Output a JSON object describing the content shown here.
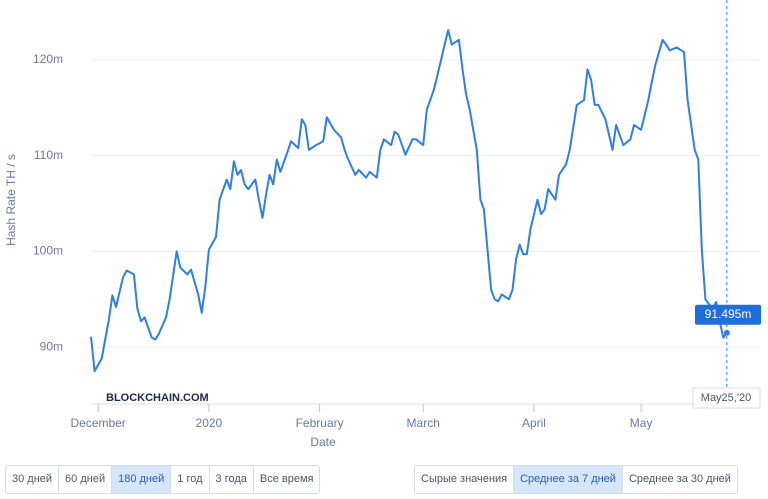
{
  "chart_data": {
    "type": "line",
    "y_label": "Hash Rate TH / s",
    "x_label": "Date",
    "watermark": "BLOCKCHAIN.COM",
    "color": "#2f7ee6",
    "grid": true,
    "xlim": [
      "2019-11-29",
      "2020-06-03"
    ],
    "xticks": [
      {
        "value": "2019-12-01",
        "label": "December"
      },
      {
        "value": "2020-01-01",
        "label": "2020"
      },
      {
        "value": "2020-02-01",
        "label": "February"
      },
      {
        "value": "2020-03-01",
        "label": "March"
      },
      {
        "value": "2020-04-01",
        "label": "April"
      },
      {
        "value": "2020-05-01",
        "label": "May"
      }
    ],
    "ylim": [
      85,
      125
    ],
    "yticks": [
      {
        "value": 90,
        "label": "90m"
      },
      {
        "value": 100,
        "label": "100m"
      },
      {
        "value": 110,
        "label": "110m"
      },
      {
        "value": 120,
        "label": "120m"
      }
    ],
    "x": [
      "2019-11-29",
      "2019-11-30",
      "2019-12-02",
      "2019-12-04",
      "2019-12-05",
      "2019-12-06",
      "2019-12-08",
      "2019-12-09",
      "2019-12-11",
      "2019-12-12",
      "2019-12-13",
      "2019-12-14",
      "2019-12-16",
      "2019-12-17",
      "2019-12-18",
      "2019-12-20",
      "2019-12-21",
      "2019-12-23",
      "2019-12-24",
      "2019-12-26",
      "2019-12-27",
      "2019-12-29",
      "2019-12-30",
      "2019-12-31",
      "2020-01-01",
      "2020-01-03",
      "2020-01-04",
      "2020-01-06",
      "2020-01-07",
      "2020-01-08",
      "2020-01-09",
      "2020-01-10",
      "2020-01-11",
      "2020-01-12",
      "2020-01-14",
      "2020-01-15",
      "2020-01-16",
      "2020-01-17",
      "2020-01-18",
      "2020-01-19",
      "2020-01-20",
      "2020-01-21",
      "2020-01-23",
      "2020-01-24",
      "2020-01-26",
      "2020-01-27",
      "2020-01-28",
      "2020-01-29",
      "2020-01-31",
      "2020-02-02",
      "2020-02-03",
      "2020-02-05",
      "2020-02-07",
      "2020-02-08",
      "2020-02-09",
      "2020-02-11",
      "2020-02-12",
      "2020-02-14",
      "2020-02-15",
      "2020-02-17",
      "2020-02-18",
      "2020-02-19",
      "2020-02-21",
      "2020-02-22",
      "2020-02-23",
      "2020-02-25",
      "2020-02-27",
      "2020-02-28",
      "2020-03-01",
      "2020-03-02",
      "2020-03-04",
      "2020-03-06",
      "2020-03-07",
      "2020-03-08",
      "2020-03-09",
      "2020-03-11",
      "2020-03-12",
      "2020-03-13",
      "2020-03-14",
      "2020-03-16",
      "2020-03-17",
      "2020-03-18",
      "2020-03-19",
      "2020-03-20",
      "2020-03-21",
      "2020-03-22",
      "2020-03-23",
      "2020-03-25",
      "2020-03-26",
      "2020-03-27",
      "2020-03-28",
      "2020-03-29",
      "2020-03-30",
      "2020-03-31",
      "2020-04-02",
      "2020-04-03",
      "2020-04-04",
      "2020-04-05",
      "2020-04-07",
      "2020-04-08",
      "2020-04-10",
      "2020-04-11",
      "2020-04-13",
      "2020-04-15",
      "2020-04-16",
      "2020-04-17",
      "2020-04-18",
      "2020-04-19",
      "2020-04-21",
      "2020-04-23",
      "2020-04-24",
      "2020-04-26",
      "2020-04-28",
      "2020-04-29",
      "2020-05-01",
      "2020-05-03",
      "2020-05-04",
      "2020-05-05",
      "2020-05-07",
      "2020-05-08",
      "2020-05-09",
      "2020-05-11",
      "2020-05-13",
      "2020-05-14",
      "2020-05-16",
      "2020-05-17",
      "2020-05-18",
      "2020-05-19",
      "2020-05-21",
      "2020-05-22",
      "2020-05-23",
      "2020-05-24",
      "2020-05-25"
    ],
    "values": [
      91.1,
      87.5,
      88.8,
      92.9,
      95.4,
      94.2,
      97.3,
      98.0,
      97.6,
      94.0,
      92.7,
      93.1,
      91.0,
      90.8,
      91.4,
      93.1,
      95.0,
      100.0,
      98.3,
      97.6,
      98.1,
      95.5,
      93.6,
      96.3,
      100.2,
      101.5,
      105.4,
      107.5,
      106.5,
      109.4,
      108.0,
      108.5,
      107.0,
      106.5,
      107.5,
      105.4,
      103.5,
      105.9,
      108.0,
      107.0,
      109.6,
      108.3,
      110.4,
      111.5,
      110.8,
      113.8,
      113.2,
      110.6,
      111.1,
      111.5,
      114.0,
      112.7,
      111.9,
      110.6,
      109.6,
      108.0,
      108.5,
      107.7,
      108.3,
      107.7,
      110.6,
      111.7,
      111.1,
      112.5,
      112.2,
      110.1,
      111.7,
      111.7,
      111.1,
      114.8,
      116.9,
      120.0,
      121.6,
      123.1,
      121.6,
      122.1,
      119.0,
      116.4,
      114.8,
      110.6,
      105.4,
      104.4,
      100.2,
      96.0,
      95.0,
      94.8,
      95.5,
      95.0,
      96.0,
      99.2,
      100.7,
      99.7,
      99.7,
      102.3,
      105.4,
      103.9,
      104.4,
      106.5,
      105.4,
      108.0,
      109.1,
      110.6,
      115.3,
      115.8,
      119.0,
      117.9,
      115.3,
      115.3,
      113.8,
      110.6,
      113.2,
      111.1,
      111.7,
      113.2,
      112.7,
      115.8,
      117.7,
      119.5,
      122.1,
      121.6,
      121.0,
      121.3,
      120.8,
      115.8,
      110.6,
      109.6,
      100.2,
      95.0,
      94.0,
      94.7,
      92.7,
      91.0,
      91.495
    ],
    "tooltip": {
      "label": "91.495m",
      "x_label": "May25,'20"
    }
  },
  "controls": {
    "range_buttons": [
      "30 дней",
      "60 дней",
      "180 дней",
      "1 год",
      "3 года",
      "Все время"
    ],
    "range_selected": 2,
    "smoothing_buttons": [
      "Сырые значения",
      "Среднее за 7 дней",
      "Среднее за 30 дней"
    ],
    "smoothing_selected": 1
  }
}
